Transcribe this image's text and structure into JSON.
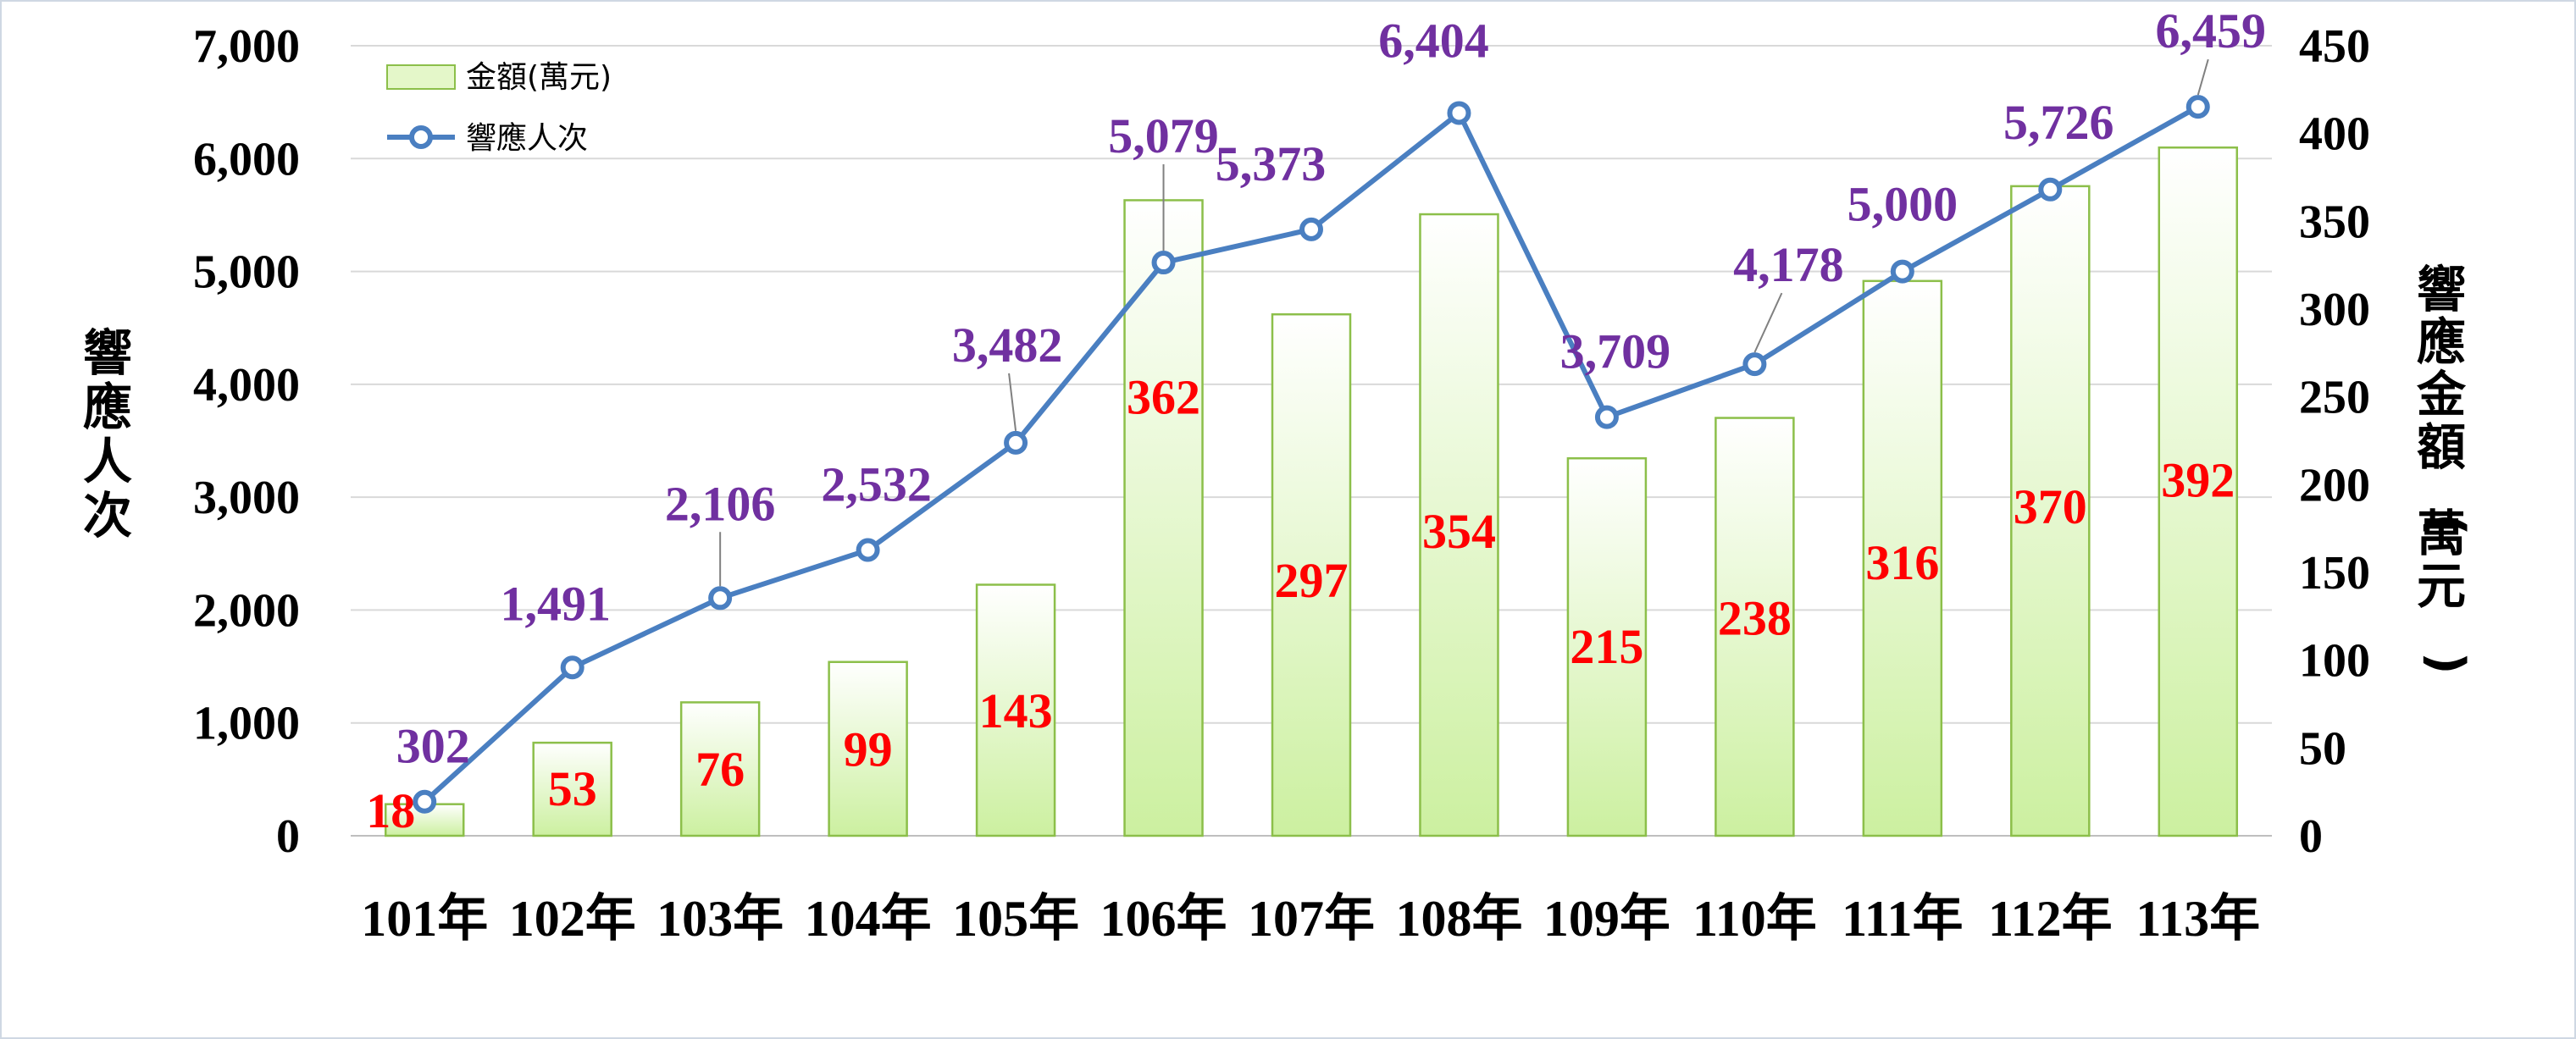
{
  "chart_data": {
    "type": "bar+line",
    "categories": [
      "101年",
      "102年",
      "103年",
      "104年",
      "105年",
      "106年",
      "107年",
      "108年",
      "109年",
      "110年",
      "111年",
      "112年",
      "113年"
    ],
    "series": [
      {
        "name": "金額(萬元)",
        "type": "bar",
        "axis": "right",
        "values": [
          18,
          53,
          76,
          99,
          143,
          362,
          297,
          354,
          215,
          238,
          316,
          370,
          392
        ],
        "color": "#e4f7c9",
        "border_color": "#8cbf4a",
        "label_color": "#ff0000"
      },
      {
        "name": "響應人次",
        "type": "line",
        "axis": "left",
        "values": [
          302,
          1491,
          2106,
          2532,
          3482,
          5079,
          5373,
          6404,
          3709,
          4178,
          5000,
          5726,
          6459
        ],
        "color": "#4a7fc1",
        "label_color": "#7030a0"
      }
    ],
    "bar_label_text": [
      "18",
      "53",
      "76",
      "99",
      "143",
      "362",
      "297",
      "354",
      "215",
      "238",
      "316",
      "370",
      "392"
    ],
    "line_label_text": [
      "302",
      "1,491",
      "2,106",
      "2,532",
      "3,482",
      "5,079",
      "5,373",
      "6,404",
      "3,709",
      "4,178",
      "5,000",
      "5,726",
      "6,459"
    ],
    "y_left": {
      "label": "響應人次",
      "range": [
        0,
        7000
      ],
      "ticks": [
        0,
        1000,
        2000,
        3000,
        4000,
        5000,
        6000,
        7000
      ],
      "tick_labels": [
        "0",
        "1,000",
        "2,000",
        "3,000",
        "4,000",
        "5,000",
        "6,000",
        "7,000"
      ]
    },
    "y_right": {
      "label": "響應金額(萬元)",
      "range": [
        0,
        450
      ],
      "ticks": [
        0,
        50,
        100,
        150,
        200,
        250,
        300,
        350,
        400,
        450
      ],
      "tick_labels": [
        "0",
        "50",
        "100",
        "150",
        "200",
        "250",
        "300",
        "350",
        "400",
        "450"
      ]
    },
    "grid": true,
    "legend": "top-left"
  }
}
